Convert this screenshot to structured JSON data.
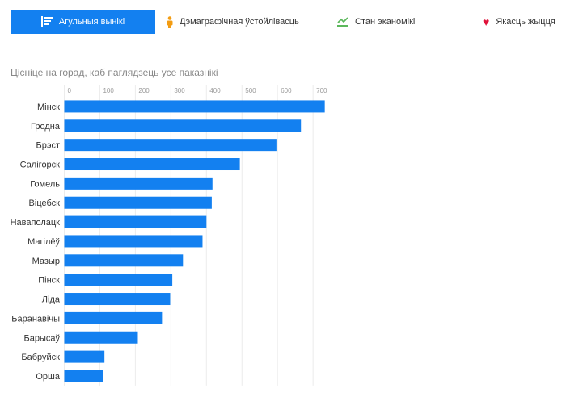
{
  "tabs": [
    {
      "label": "Агульныя вынікі",
      "icon": "list-icon",
      "active": true
    },
    {
      "label": "Дэмаграфічная ўстойлівасць",
      "icon": "person-icon",
      "active": false
    },
    {
      "label": "Стан эканомікі",
      "icon": "trend-icon",
      "active": false
    },
    {
      "label": "Якасць жыцця",
      "icon": "heart-icon",
      "active": false
    }
  ],
  "subtitle": "Цісніце на горад, каб паглядзець усе паказнікі",
  "colors": {
    "accent": "#1380f0",
    "person": "#f39c12",
    "trend": "#5cb85c",
    "heart": "#e0123a"
  },
  "chart_data": {
    "type": "bar",
    "orientation": "horizontal",
    "categories": [
      "Мінск",
      "Гродна",
      "Брэст",
      "Салігорск",
      "Гомель",
      "Віцебск",
      "Наваполацк",
      "Магілёў",
      "Мазыр",
      "Пінск",
      "Ліда",
      "Баранавічы",
      "Барысаў",
      "Бабруйск",
      "Орша"
    ],
    "values": [
      733,
      666,
      597,
      494,
      417,
      415,
      400,
      389,
      334,
      304,
      298,
      275,
      207,
      113,
      109
    ],
    "xticks": [
      0,
      100,
      200,
      300,
      400,
      500,
      600,
      700
    ],
    "xlim": [
      0,
      750
    ],
    "grid": true,
    "title": "",
    "xlabel": "",
    "ylabel": ""
  }
}
